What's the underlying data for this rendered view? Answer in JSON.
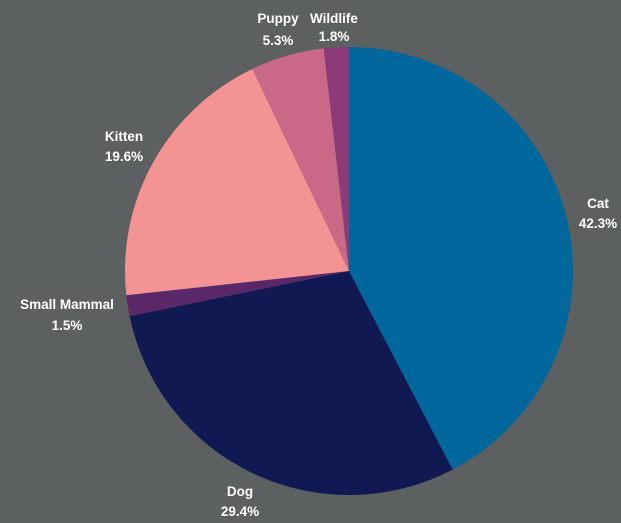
{
  "chart_data": {
    "type": "pie",
    "title": "",
    "start": "12 o'clock",
    "direction": "clockwise",
    "slices": [
      {
        "label": "Cat",
        "percent_label": "42.3%",
        "value": 42.3,
        "color": "#01679d"
      },
      {
        "label": "Dog",
        "percent_label": "29.4%",
        "value": 29.4,
        "color": "#111952"
      },
      {
        "label": "Small Mammal",
        "percent_label": "1.5%",
        "value": 1.5,
        "color": "#5a2868"
      },
      {
        "label": "Kitten",
        "percent_label": "19.6%",
        "value": 19.6,
        "color": "#f49393"
      },
      {
        "label": "Puppy",
        "percent_label": "5.3%",
        "value": 5.3,
        "color": "#ca6888"
      },
      {
        "label": "Wildlife",
        "percent_label": "1.8%",
        "value": 1.8,
        "color": "#8d3a79"
      }
    ],
    "background": "#5d6061",
    "label_color": "#ffffff"
  }
}
